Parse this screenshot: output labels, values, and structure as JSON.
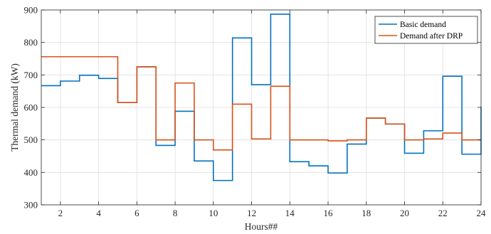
{
  "chart_data": {
    "type": "line",
    "step": "post",
    "xlabel": "Hours##",
    "ylabel": "Thermal demand (kW)",
    "xlim": [
      1,
      24
    ],
    "ylim": [
      300,
      900
    ],
    "xticks": [
      2,
      4,
      6,
      8,
      10,
      12,
      14,
      16,
      18,
      20,
      22,
      24
    ],
    "yticks": [
      300,
      400,
      500,
      600,
      700,
      800,
      900
    ],
    "grid": true,
    "legend": {
      "position": "top-right"
    },
    "x": [
      1,
      2,
      3,
      4,
      5,
      6,
      7,
      8,
      9,
      10,
      11,
      12,
      13,
      14,
      15,
      16,
      17,
      18,
      19,
      20,
      21,
      22,
      23,
      24
    ],
    "series": [
      {
        "name": "Basic demand",
        "color": "#0072BD",
        "values": [
          667,
          681,
          699,
          689,
          615,
          725,
          483,
          588,
          435,
          375,
          814,
          670,
          887,
          433,
          420,
          398,
          487,
          567,
          549,
          459,
          528,
          696,
          456,
          602
        ]
      },
      {
        "name": "Demand after DRP",
        "color": "#D95319",
        "values": [
          756,
          756,
          756,
          756,
          615,
          725,
          500,
          675,
          500,
          469,
          610,
          503,
          665,
          500,
          500,
          497,
          500,
          567,
          549,
          500,
          503,
          521,
          500,
          500
        ]
      }
    ]
  }
}
